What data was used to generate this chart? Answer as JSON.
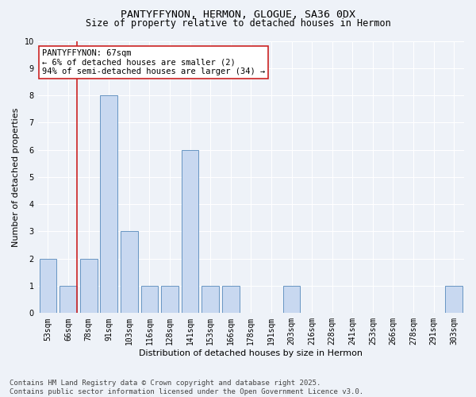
{
  "title1": "PANTYFFYNON, HERMON, GLOGUE, SA36 0DX",
  "title2": "Size of property relative to detached houses in Hermon",
  "xlabel": "Distribution of detached houses by size in Hermon",
  "ylabel": "Number of detached properties",
  "categories": [
    "53sqm",
    "66sqm",
    "78sqm",
    "91sqm",
    "103sqm",
    "116sqm",
    "128sqm",
    "141sqm",
    "153sqm",
    "166sqm",
    "178sqm",
    "191sqm",
    "203sqm",
    "216sqm",
    "228sqm",
    "241sqm",
    "253sqm",
    "266sqm",
    "278sqm",
    "291sqm",
    "303sqm"
  ],
  "values": [
    2,
    1,
    2,
    8,
    3,
    1,
    1,
    6,
    1,
    1,
    0,
    0,
    1,
    0,
    0,
    0,
    0,
    0,
    0,
    0,
    1
  ],
  "bar_color": "#c8d8f0",
  "bar_edge_color": "#5588bb",
  "highlight_color": "#cc2222",
  "ylim": [
    0,
    10
  ],
  "yticks": [
    0,
    1,
    2,
    3,
    4,
    5,
    6,
    7,
    8,
    9,
    10
  ],
  "annotation_text": "PANTYFFYNON: 67sqm\n← 6% of detached houses are smaller (2)\n94% of semi-detached houses are larger (34) →",
  "annotation_box_color": "#ffffff",
  "annotation_box_edge": "#cc2222",
  "vline_index": 1,
  "background_color": "#eef2f8",
  "grid_color": "#ffffff",
  "footer": "Contains HM Land Registry data © Crown copyright and database right 2025.\nContains public sector information licensed under the Open Government Licence v3.0.",
  "title_fontsize": 9.5,
  "subtitle_fontsize": 8.5,
  "axis_label_fontsize": 8,
  "tick_fontsize": 7,
  "annotation_fontsize": 7.5,
  "footer_fontsize": 6.5
}
